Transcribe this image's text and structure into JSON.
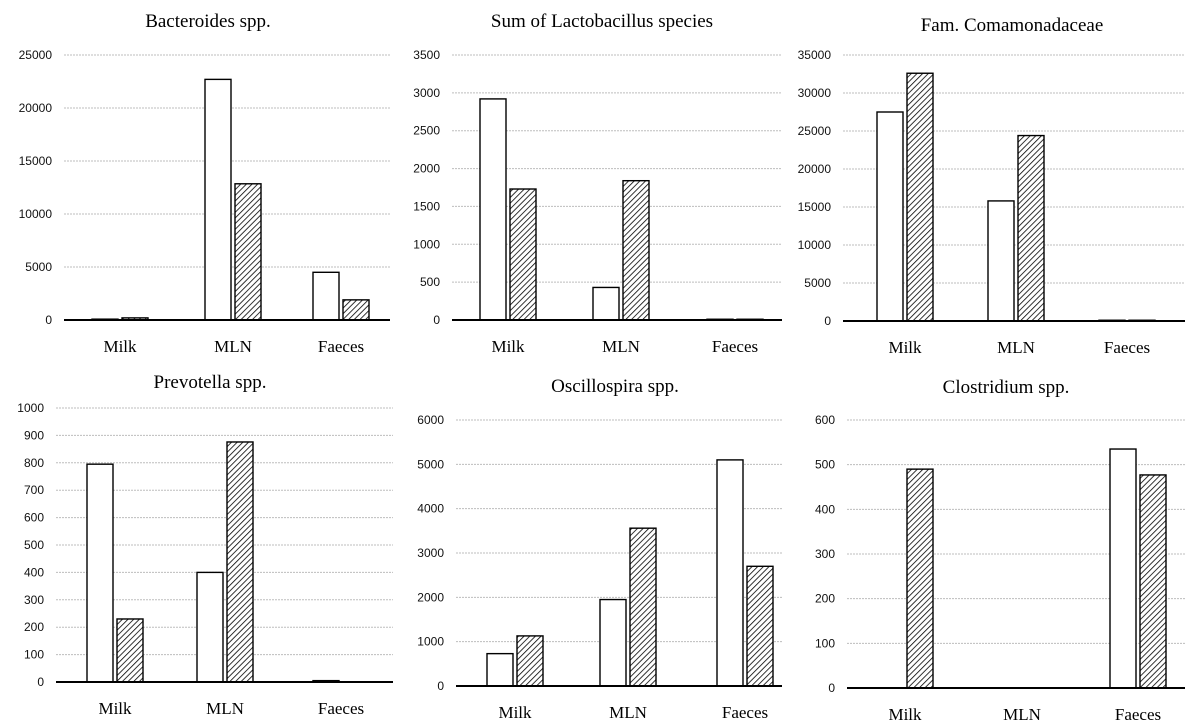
{
  "chart_data": [
    {
      "type": "bar",
      "title": "Bacteroides spp.",
      "categories": [
        "Milk",
        "MLN",
        "Faeces"
      ],
      "series": [
        {
          "values": [
            80,
            22700,
            4500
          ]
        },
        {
          "values": [
            200,
            12850,
            1900
          ]
        }
      ],
      "ylim": [
        0,
        25000
      ],
      "yticks": [
        0,
        5000,
        10000,
        15000,
        20000,
        25000
      ],
      "grid": true
    },
    {
      "type": "bar",
      "title": "Sum of Lactobacillus species",
      "categories": [
        "Milk",
        "MLN",
        "Faeces"
      ],
      "series": [
        {
          "values": [
            2920,
            430,
            10
          ]
        },
        {
          "values": [
            1730,
            1840,
            10
          ]
        }
      ],
      "ylim": [
        0,
        3500
      ],
      "yticks": [
        0,
        500,
        1000,
        1500,
        2000,
        2500,
        3000,
        3500
      ],
      "grid": true
    },
    {
      "type": "bar",
      "title": "Fam. Comamonadaceae",
      "categories": [
        "Milk",
        "MLN",
        "Faeces"
      ],
      "series": [
        {
          "values": [
            27500,
            15800,
            100
          ]
        },
        {
          "values": [
            32600,
            24400,
            100
          ]
        }
      ],
      "ylim": [
        0,
        35000
      ],
      "yticks": [
        0,
        5000,
        10000,
        15000,
        20000,
        25000,
        30000,
        35000
      ],
      "grid": true
    },
    {
      "type": "bar",
      "title": "Prevotella spp.",
      "categories": [
        "Milk",
        "MLN",
        "Faeces"
      ],
      "series": [
        {
          "values": [
            795,
            400,
            5
          ]
        },
        {
          "values": [
            230,
            876,
            0
          ]
        }
      ],
      "ylim": [
        0,
        1000
      ],
      "yticks": [
        0,
        100,
        200,
        300,
        400,
        500,
        600,
        700,
        800,
        900,
        1000
      ],
      "grid": true
    },
    {
      "type": "bar",
      "title": "Oscillospira spp.",
      "categories": [
        "Milk",
        "MLN",
        "Faeces"
      ],
      "series": [
        {
          "values": [
            730,
            1950,
            5100
          ]
        },
        {
          "values": [
            1130,
            3560,
            2700
          ]
        }
      ],
      "ylim": [
        0,
        6000
      ],
      "yticks": [
        0,
        1000,
        2000,
        3000,
        4000,
        5000,
        6000
      ],
      "grid": true
    },
    {
      "type": "bar",
      "title": "Clostridium spp.",
      "categories": [
        "Milk",
        "MLN",
        "Faeces"
      ],
      "series": [
        {
          "values": [
            0,
            0,
            535
          ]
        },
        {
          "values": [
            490,
            0,
            477
          ]
        }
      ],
      "ylim": [
        0,
        600
      ],
      "yticks": [
        0,
        100,
        200,
        300,
        400,
        500,
        600
      ],
      "grid": true
    }
  ],
  "colors": {
    "series1_fill": "#ffffff",
    "series2_pattern": "diagonal-hatch",
    "bar_stroke": "#000000",
    "grid": "#bdbdbd",
    "axis": "#000000"
  }
}
